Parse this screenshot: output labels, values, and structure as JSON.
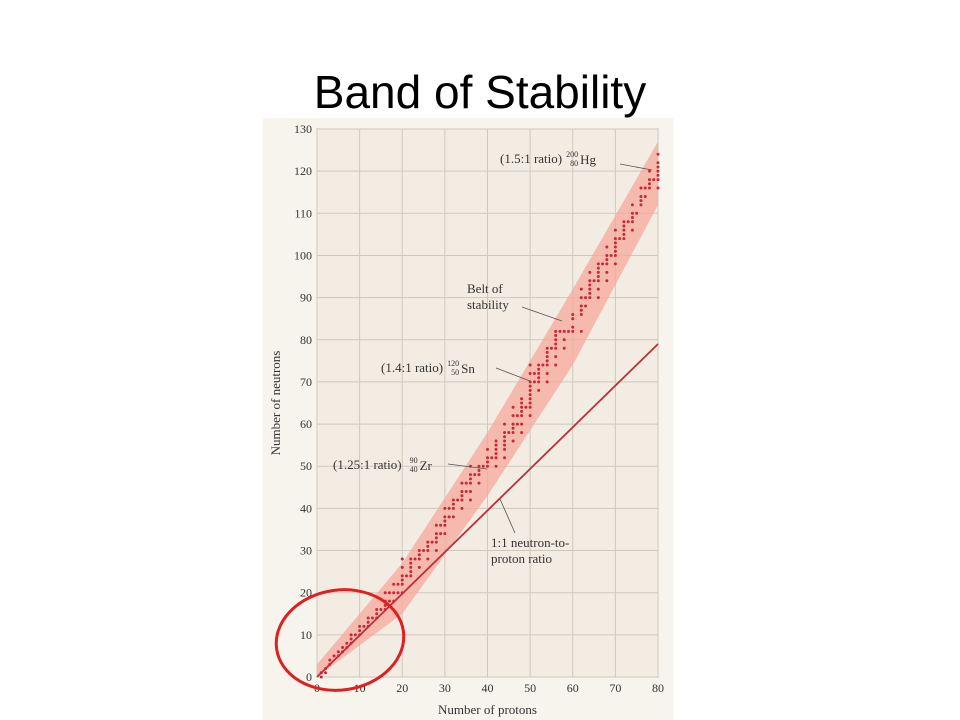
{
  "slide_title": "Band of Stability",
  "chart_data": {
    "type": "scatter",
    "xlabel": "Number of protons",
    "ylabel": "Number of neutrons",
    "xlim": [
      0,
      80
    ],
    "ylim": [
      0,
      130
    ],
    "xticks": [
      0,
      10,
      20,
      30,
      40,
      50,
      60,
      70,
      80
    ],
    "yticks": [
      0,
      10,
      20,
      30,
      40,
      50,
      60,
      70,
      80,
      90,
      100,
      110,
      120,
      130
    ],
    "grid": true,
    "point_color": "#c8283a",
    "band": {
      "color": "#f7a89b",
      "x": [
        0,
        20,
        40,
        60,
        80
      ],
      "lower": [
        0,
        15,
        43,
        74,
        112
      ],
      "upper": [
        3,
        27,
        58,
        92,
        127
      ]
    },
    "line": {
      "color": "#b8303f",
      "x": [
        0,
        80
      ],
      "y": [
        0,
        79
      ]
    },
    "points": [
      [
        1,
        0
      ],
      [
        1,
        1
      ],
      [
        2,
        1
      ],
      [
        2,
        2
      ],
      [
        3,
        3
      ],
      [
        3,
        4
      ],
      [
        4,
        5
      ],
      [
        5,
        5
      ],
      [
        5,
        6
      ],
      [
        6,
        6
      ],
      [
        6,
        7
      ],
      [
        7,
        7
      ],
      [
        7,
        8
      ],
      [
        8,
        8
      ],
      [
        8,
        9
      ],
      [
        8,
        10
      ],
      [
        9,
        10
      ],
      [
        10,
        10
      ],
      [
        10,
        11
      ],
      [
        10,
        12
      ],
      [
        11,
        12
      ],
      [
        12,
        12
      ],
      [
        12,
        13
      ],
      [
        12,
        14
      ],
      [
        13,
        14
      ],
      [
        14,
        14
      ],
      [
        14,
        15
      ],
      [
        14,
        16
      ],
      [
        15,
        16
      ],
      [
        16,
        16
      ],
      [
        16,
        17
      ],
      [
        16,
        18
      ],
      [
        16,
        20
      ],
      [
        17,
        18
      ],
      [
        17,
        20
      ],
      [
        18,
        18
      ],
      [
        18,
        20
      ],
      [
        18,
        22
      ],
      [
        19,
        20
      ],
      [
        19,
        22
      ],
      [
        20,
        20
      ],
      [
        20,
        22
      ],
      [
        20,
        23
      ],
      [
        20,
        24
      ],
      [
        20,
        26
      ],
      [
        20,
        28
      ],
      [
        21,
        24
      ],
      [
        22,
        24
      ],
      [
        22,
        25
      ],
      [
        22,
        26
      ],
      [
        22,
        27
      ],
      [
        22,
        28
      ],
      [
        23,
        28
      ],
      [
        24,
        26
      ],
      [
        24,
        28
      ],
      [
        24,
        29
      ],
      [
        24,
        30
      ],
      [
        25,
        30
      ],
      [
        26,
        28
      ],
      [
        26,
        30
      ],
      [
        26,
        31
      ],
      [
        26,
        32
      ],
      [
        27,
        32
      ],
      [
        28,
        30
      ],
      [
        28,
        32
      ],
      [
        28,
        33
      ],
      [
        28,
        34
      ],
      [
        28,
        36
      ],
      [
        29,
        34
      ],
      [
        29,
        36
      ],
      [
        30,
        34
      ],
      [
        30,
        36
      ],
      [
        30,
        37
      ],
      [
        30,
        38
      ],
      [
        30,
        40
      ],
      [
        31,
        38
      ],
      [
        31,
        40
      ],
      [
        32,
        38
      ],
      [
        32,
        40
      ],
      [
        32,
        41
      ],
      [
        32,
        42
      ],
      [
        33,
        42
      ],
      [
        34,
        40
      ],
      [
        34,
        42
      ],
      [
        34,
        43
      ],
      [
        34,
        44
      ],
      [
        34,
        46
      ],
      [
        35,
        44
      ],
      [
        35,
        46
      ],
      [
        36,
        42
      ],
      [
        36,
        44
      ],
      [
        36,
        46
      ],
      [
        36,
        47
      ],
      [
        36,
        48
      ],
      [
        36,
        50
      ],
      [
        37,
        48
      ],
      [
        38,
        46
      ],
      [
        38,
        48
      ],
      [
        38,
        49
      ],
      [
        38,
        50
      ],
      [
        39,
        50
      ],
      [
        40,
        50
      ],
      [
        40,
        51
      ],
      [
        40,
        52
      ],
      [
        40,
        54
      ],
      [
        41,
        52
      ],
      [
        42,
        50
      ],
      [
        42,
        52
      ],
      [
        42,
        53
      ],
      [
        42,
        54
      ],
      [
        42,
        55
      ],
      [
        42,
        56
      ],
      [
        44,
        52
      ],
      [
        44,
        54
      ],
      [
        44,
        55
      ],
      [
        44,
        56
      ],
      [
        44,
        57
      ],
      [
        44,
        58
      ],
      [
        44,
        60
      ],
      [
        45,
        58
      ],
      [
        46,
        56
      ],
      [
        46,
        58
      ],
      [
        46,
        59
      ],
      [
        46,
        60
      ],
      [
        46,
        62
      ],
      [
        46,
        64
      ],
      [
        47,
        60
      ],
      [
        47,
        62
      ],
      [
        48,
        58
      ],
      [
        48,
        60
      ],
      [
        48,
        62
      ],
      [
        48,
        63
      ],
      [
        48,
        64
      ],
      [
        48,
        65
      ],
      [
        48,
        66
      ],
      [
        49,
        64
      ],
      [
        50,
        62
      ],
      [
        50,
        64
      ],
      [
        50,
        65
      ],
      [
        50,
        66
      ],
      [
        50,
        67
      ],
      [
        50,
        68
      ],
      [
        50,
        69
      ],
      [
        50,
        70
      ],
      [
        50,
        72
      ],
      [
        50,
        74
      ],
      [
        51,
        70
      ],
      [
        51,
        72
      ],
      [
        52,
        68
      ],
      [
        52,
        70
      ],
      [
        52,
        71
      ],
      [
        52,
        72
      ],
      [
        52,
        73
      ],
      [
        52,
        74
      ],
      [
        53,
        74
      ],
      [
        54,
        70
      ],
      [
        54,
        72
      ],
      [
        54,
        74
      ],
      [
        54,
        75
      ],
      [
        54,
        76
      ],
      [
        54,
        77
      ],
      [
        54,
        78
      ],
      [
        55,
        78
      ],
      [
        56,
        74
      ],
      [
        56,
        76
      ],
      [
        56,
        78
      ],
      [
        56,
        79
      ],
      [
        56,
        80
      ],
      [
        56,
        81
      ],
      [
        56,
        82
      ],
      [
        57,
        82
      ],
      [
        58,
        78
      ],
      [
        58,
        80
      ],
      [
        58,
        82
      ],
      [
        59,
        82
      ],
      [
        60,
        82
      ],
      [
        60,
        83
      ],
      [
        60,
        85
      ],
      [
        60,
        86
      ],
      [
        62,
        82
      ],
      [
        62,
        86
      ],
      [
        62,
        87
      ],
      [
        62,
        88
      ],
      [
        62,
        90
      ],
      [
        62,
        92
      ],
      [
        63,
        88
      ],
      [
        63,
        90
      ],
      [
        64,
        90
      ],
      [
        64,
        91
      ],
      [
        64,
        92
      ],
      [
        64,
        93
      ],
      [
        64,
        94
      ],
      [
        64,
        96
      ],
      [
        65,
        94
      ],
      [
        66,
        90
      ],
      [
        66,
        92
      ],
      [
        66,
        94
      ],
      [
        66,
        95
      ],
      [
        66,
        96
      ],
      [
        66,
        97
      ],
      [
        66,
        98
      ],
      [
        67,
        98
      ],
      [
        68,
        94
      ],
      [
        68,
        96
      ],
      [
        68,
        98
      ],
      [
        68,
        99
      ],
      [
        68,
        100
      ],
      [
        68,
        102
      ],
      [
        69,
        100
      ],
      [
        70,
        98
      ],
      [
        70,
        100
      ],
      [
        70,
        101
      ],
      [
        70,
        102
      ],
      [
        70,
        103
      ],
      [
        70,
        104
      ],
      [
        70,
        106
      ],
      [
        71,
        104
      ],
      [
        72,
        104
      ],
      [
        72,
        105
      ],
      [
        72,
        106
      ],
      [
        72,
        107
      ],
      [
        72,
        108
      ],
      [
        73,
        108
      ],
      [
        74,
        106
      ],
      [
        74,
        108
      ],
      [
        74,
        109
      ],
      [
        74,
        110
      ],
      [
        74,
        112
      ],
      [
        75,
        110
      ],
      [
        76,
        112
      ],
      [
        76,
        113
      ],
      [
        76,
        114
      ],
      [
        76,
        116
      ],
      [
        77,
        114
      ],
      [
        77,
        116
      ],
      [
        78,
        116
      ],
      [
        78,
        117
      ],
      [
        78,
        118
      ],
      [
        78,
        120
      ],
      [
        79,
        118
      ],
      [
        80,
        116
      ],
      [
        80,
        118
      ],
      [
        80,
        119
      ],
      [
        80,
        120
      ],
      [
        80,
        121
      ],
      [
        80,
        122
      ],
      [
        80,
        124
      ]
    ],
    "annotations": [
      {
        "text": "(1.5:1 ratio)",
        "mass": 200,
        "atomic": 80,
        "symbol": "Hg"
      },
      {
        "text": "(1.4:1 ratio)",
        "mass": 120,
        "atomic": 50,
        "symbol": "Sn"
      },
      {
        "text": "(1.25:1 ratio)",
        "mass": 90,
        "atomic": 40,
        "symbol": "Zr"
      }
    ],
    "belt_label": [
      "Belt of",
      "stability"
    ],
    "line_label": [
      "1:1 neutron-to-",
      "proton ratio"
    ]
  }
}
